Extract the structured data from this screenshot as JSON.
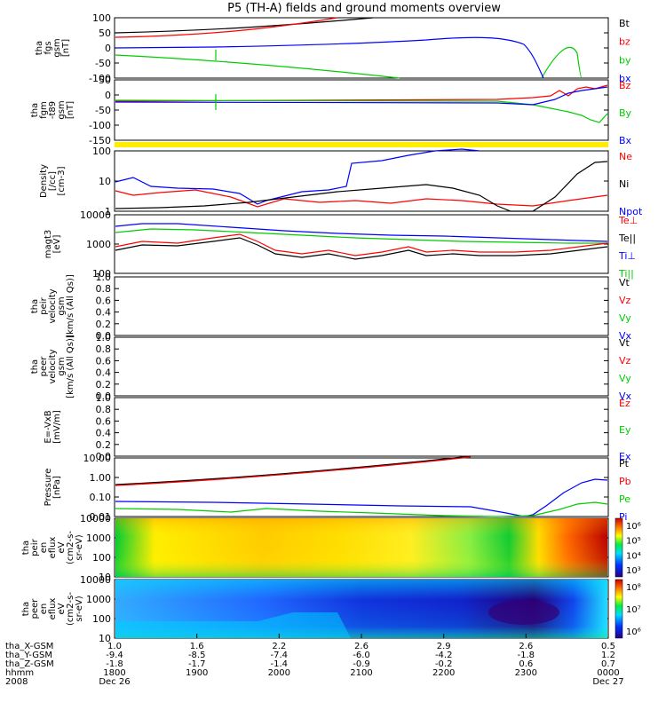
{
  "chart_data": {
    "type": "line",
    "title": "P5 (TH-A) fields and ground moments overview",
    "panels": [
      {
        "ylabel_lines": [
          "tha",
          "fgs",
          "gsm",
          "[nT]"
        ],
        "yticks": [
          "100",
          "50",
          "0",
          "-50",
          "-100"
        ],
        "ylim": [
          -100,
          100
        ],
        "legend": [
          {
            "label": "Bt",
            "color": "#000000"
          },
          {
            "label": "bz",
            "color": "#ff0000"
          },
          {
            "label": "by",
            "color": "#00cc00"
          },
          {
            "label": "bx",
            "color": "#0000ff"
          }
        ]
      },
      {
        "ylabel_lines": [
          "tha",
          "fgm",
          "-t89",
          "gsm",
          "[nT]"
        ],
        "yticks": [
          "50",
          "0",
          "-50",
          "-100",
          "-150"
        ],
        "ylim": [
          -175,
          75
        ],
        "legend": [
          {
            "label": "Bz",
            "color": "#ff0000"
          },
          {
            "label": "By",
            "color": "#00cc00"
          },
          {
            "label": "Bx",
            "color": "#0000ff"
          }
        ]
      },
      {
        "ylabel_lines": [
          "Density",
          "[/cc]",
          "[cm-3]"
        ],
        "yticks": [
          "100",
          "10",
          "1"
        ],
        "scale": "log",
        "legend": [
          {
            "label": "Ne",
            "color": "#ff0000"
          },
          {
            "label": "Ni",
            "color": "#000000"
          },
          {
            "label": "Npot",
            "color": "#0000ff"
          }
        ]
      },
      {
        "ylabel_lines": [
          "magt3",
          "[eV]"
        ],
        "yticks": [
          "10000",
          "1000",
          "100"
        ],
        "scale": "log",
        "legend": [
          {
            "label": "Te⊥",
            "color": "#ff0000"
          },
          {
            "label": "Te||",
            "color": "#000000"
          },
          {
            "label": "Ti⊥",
            "color": "#0000ff"
          },
          {
            "label": "Ti||",
            "color": "#00cc00"
          }
        ]
      },
      {
        "ylabel_lines": [
          "tha",
          "peir",
          "velocity",
          "gsm",
          "[km/s (All Qs)]"
        ],
        "yticks": [
          "1.0",
          "0.8",
          "0.6",
          "0.4",
          "0.2",
          "0.0"
        ],
        "ylim": [
          0,
          1
        ],
        "legend": [
          {
            "label": "Vt",
            "color": "#000000"
          },
          {
            "label": "Vz",
            "color": "#ff0000"
          },
          {
            "label": "Vy",
            "color": "#00cc00"
          },
          {
            "label": "Vx",
            "color": "#0000ff"
          }
        ]
      },
      {
        "ylabel_lines": [
          "tha",
          "peer",
          "velocity",
          "gsm",
          "[km/s (All Qs)]"
        ],
        "yticks": [
          "1.0",
          "0.8",
          "0.6",
          "0.4",
          "0.2",
          "0.0"
        ],
        "ylim": [
          0,
          1
        ],
        "legend": [
          {
            "label": "Vt",
            "color": "#000000"
          },
          {
            "label": "Vz",
            "color": "#ff0000"
          },
          {
            "label": "Vy",
            "color": "#00cc00"
          },
          {
            "label": "Vx",
            "color": "#0000ff"
          }
        ]
      },
      {
        "ylabel_lines": [
          "E=-VxB",
          "[mV/m]"
        ],
        "yticks": [
          "1.0",
          "0.8",
          "0.6",
          "0.4",
          "0.2",
          "0.0"
        ],
        "ylim": [
          0,
          1
        ],
        "legend": [
          {
            "label": "Ez",
            "color": "#ff0000"
          },
          {
            "label": "Ey",
            "color": "#00cc00"
          },
          {
            "label": "Ex",
            "color": "#0000ff"
          }
        ]
      },
      {
        "ylabel_lines": [
          "Pressure",
          "[nPa]"
        ],
        "yticks": [
          "10.00",
          "1.00",
          "0.10",
          "0.01"
        ],
        "scale": "log",
        "legend": [
          {
            "label": "Pt",
            "color": "#000000"
          },
          {
            "label": "Pb",
            "color": "#ff0000"
          },
          {
            "label": "Pe",
            "color": "#00cc00"
          },
          {
            "label": "Pi",
            "color": "#0000ff"
          }
        ]
      },
      {
        "ylabel_lines": [
          "tha",
          "peir",
          "en",
          "eflux",
          "eV",
          "(cm2-s-",
          "sr-eV)"
        ],
        "yticks": [
          "10000",
          "1000",
          "100",
          "10"
        ],
        "colorbar_ticks": [
          "10⁶",
          "10⁵",
          "10⁴",
          "10³"
        ]
      },
      {
        "ylabel_lines": [
          "tha",
          "peer",
          "en",
          "eflux",
          "eV",
          "(cm2-s-",
          "sr-eV)"
        ],
        "yticks": [
          "10000",
          "1000",
          "100",
          "10"
        ],
        "colorbar_ticks": [
          "10⁸",
          "10⁷",
          "10⁶"
        ]
      }
    ],
    "xaxis": {
      "row_labels": [
        "tha_X-GSM",
        "tha_Y-GSM",
        "tha_Z-GSM",
        "hhmm",
        "2008"
      ],
      "ticks": [
        {
          "x": "1.0",
          "y": "-9.4",
          "z": "-1.8",
          "hhmm": "1800",
          "date": "Dec 26"
        },
        {
          "x": "1.6",
          "y": "-8.5",
          "z": "-1.7",
          "hhmm": "1900",
          "date": ""
        },
        {
          "x": "2.2",
          "y": "-7.4",
          "z": "-1.4",
          "hhmm": "2000",
          "date": ""
        },
        {
          "x": "2.6",
          "y": "-6.0",
          "z": "-0.9",
          "hhmm": "2100",
          "date": ""
        },
        {
          "x": "2.9",
          "y": "-4.2",
          "z": "-0.2",
          "hhmm": "2200",
          "date": ""
        },
        {
          "x": "2.6",
          "y": "-1.8",
          "z": "0.6",
          "hhmm": "2300",
          "date": ""
        },
        {
          "x": "0.5",
          "y": "1.2",
          "z": "0.7",
          "hhmm": "0000",
          "date": "Dec 27"
        }
      ]
    }
  }
}
